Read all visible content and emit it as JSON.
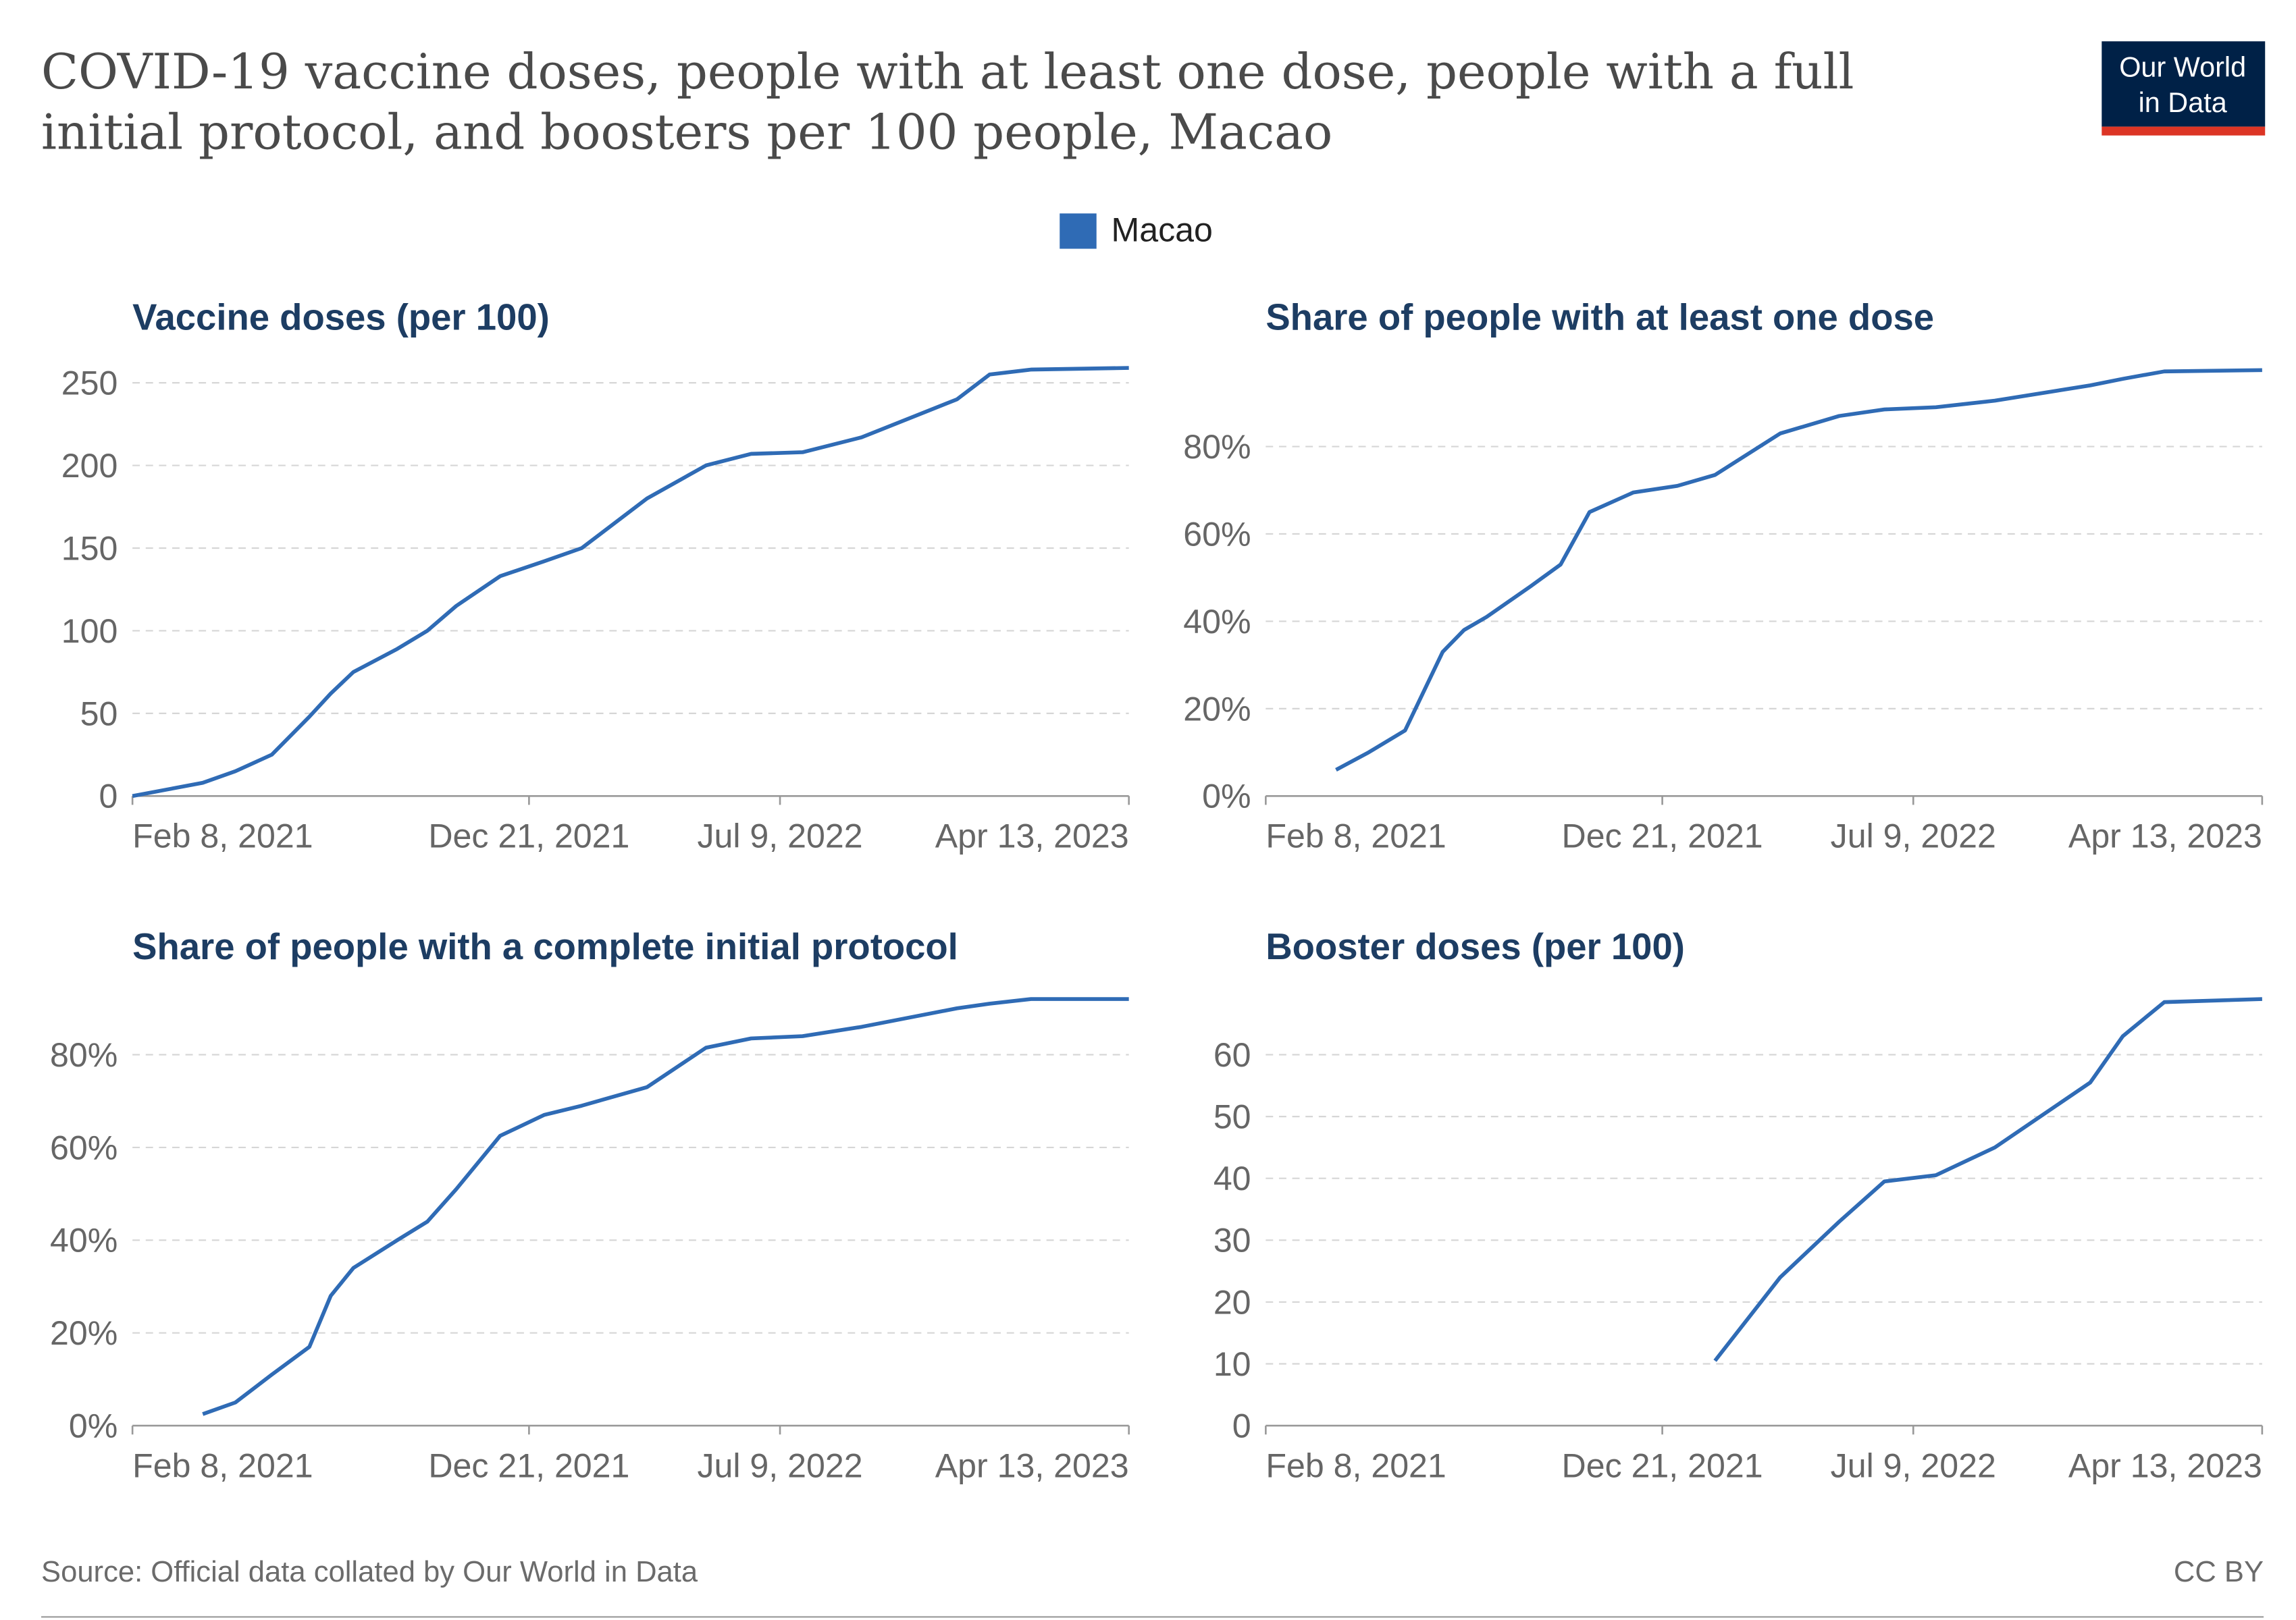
{
  "title_lines": [
    "COVID-19 vaccine doses, people with at least one dose, people with a full",
    "initial protocol, and boosters per 100 people, Macao"
  ],
  "logo": [
    "Our World",
    "in Data"
  ],
  "source": "Source: Official data collated by Our World in Data",
  "license": "CC BY",
  "chart_data": [
    {
      "type": "line",
      "title": "Vaccine doses (per 100)",
      "x": [
        "2021-02-08",
        "2021-03-08",
        "2021-04-05",
        "2021-05-01",
        "2021-05-30",
        "2021-06-29",
        "2021-07-16",
        "2021-08-03",
        "2021-09-07",
        "2021-10-01",
        "2021-10-24",
        "2021-11-28",
        "2022-01-02",
        "2022-02-01",
        "2022-03-25",
        "2022-05-11",
        "2022-06-16",
        "2022-07-27",
        "2022-09-12",
        "2022-11-27",
        "2022-12-23",
        "2023-01-25",
        "2023-04-13"
      ],
      "series": [
        {
          "name": "Macao",
          "color": "#2f6bb5",
          "values": [
            0,
            4,
            8,
            15,
            25,
            48,
            62,
            75,
            89,
            100,
            115,
            133,
            142,
            150,
            180,
            200,
            207,
            208,
            217,
            240,
            255,
            258,
            259
          ]
        }
      ],
      "xlim": [
        "2021-02-08",
        "2023-04-13"
      ],
      "xticks": [
        {
          "value": "2021-02-08",
          "label": "Feb 8, 2021"
        },
        {
          "value": "2021-12-21",
          "label": "Dec 21, 2021"
        },
        {
          "value": "2022-07-09",
          "label": "Jul 9, 2022"
        },
        {
          "value": "2023-04-13",
          "label": "Apr 13, 2023"
        }
      ],
      "ylim": [
        0,
        259
      ],
      "yticks": [
        0,
        50,
        100,
        150,
        200,
        250
      ],
      "grid": true
    },
    {
      "type": "line",
      "title": "Share of people with at least one dose",
      "x": [
        "2021-02-08",
        "2021-03-08",
        "2021-04-05",
        "2021-05-01",
        "2021-05-30",
        "2021-06-29",
        "2021-07-16",
        "2021-08-03",
        "2021-09-07",
        "2021-10-01",
        "2021-10-24",
        "2021-11-28",
        "2022-01-02",
        "2022-02-01",
        "2022-03-25",
        "2022-05-11",
        "2022-06-16",
        "2022-07-27",
        "2022-09-12",
        "2022-11-27",
        "2022-12-23",
        "2023-01-25",
        "2023-04-13"
      ],
      "series": [
        {
          "name": "Macao",
          "color": "#2f6bb5",
          "values": [
            null,
            null,
            6,
            10,
            15,
            33,
            38,
            41,
            48,
            53,
            65,
            69.5,
            71,
            73.5,
            83,
            87,
            88.5,
            89,
            90.5,
            94,
            95.5,
            97.2,
            97.5
          ]
        }
      ],
      "xlim": [
        "2021-02-08",
        "2023-04-13"
      ],
      "xticks": [
        {
          "value": "2021-02-08",
          "label": "Feb 8, 2021"
        },
        {
          "value": "2021-12-21",
          "label": "Dec 21, 2021"
        },
        {
          "value": "2022-07-09",
          "label": "Jul 9, 2022"
        },
        {
          "value": "2023-04-13",
          "label": "Apr 13, 2023"
        }
      ],
      "ylim": [
        0,
        98
      ],
      "yticks": [
        {
          "value": 0,
          "label": "0%"
        },
        {
          "value": 20,
          "label": "20%"
        },
        {
          "value": 40,
          "label": "40%"
        },
        {
          "value": 60,
          "label": "60%"
        },
        {
          "value": 80,
          "label": "80%"
        }
      ],
      "grid": true
    },
    {
      "type": "line",
      "title": "Share of people with a complete initial protocol",
      "x": [
        "2021-02-08",
        "2021-03-08",
        "2021-04-05",
        "2021-05-01",
        "2021-05-30",
        "2021-06-29",
        "2021-07-16",
        "2021-08-03",
        "2021-09-07",
        "2021-10-01",
        "2021-10-24",
        "2021-11-28",
        "2022-01-02",
        "2022-02-01",
        "2022-03-25",
        "2022-05-11",
        "2022-06-16",
        "2022-07-27",
        "2022-09-12",
        "2022-11-27",
        "2022-12-23",
        "2023-01-25",
        "2023-04-13"
      ],
      "series": [
        {
          "name": "Macao",
          "color": "#2f6bb5",
          "values": [
            null,
            null,
            2.5,
            5,
            11,
            17,
            28,
            34,
            40,
            44,
            51,
            62.5,
            67,
            69,
            73,
            81.5,
            83.5,
            84,
            86,
            90,
            91,
            92,
            92
          ]
        }
      ],
      "xlim": [
        "2021-02-08",
        "2023-04-13"
      ],
      "xticks": [
        {
          "value": "2021-02-08",
          "label": "Feb 8, 2021"
        },
        {
          "value": "2021-12-21",
          "label": "Dec 21, 2021"
        },
        {
          "value": "2022-07-09",
          "label": "Jul 9, 2022"
        },
        {
          "value": "2023-04-13",
          "label": "Apr 13, 2023"
        }
      ],
      "ylim": [
        0,
        92
      ],
      "yticks": [
        {
          "value": 0,
          "label": "0%"
        },
        {
          "value": 20,
          "label": "20%"
        },
        {
          "value": 40,
          "label": "40%"
        },
        {
          "value": 60,
          "label": "60%"
        },
        {
          "value": 80,
          "label": "80%"
        }
      ],
      "grid": true
    },
    {
      "type": "line",
      "title": "Booster doses (per 100)",
      "x": [
        "2021-02-08",
        "2021-03-08",
        "2021-04-05",
        "2021-05-01",
        "2021-05-30",
        "2021-06-29",
        "2021-07-16",
        "2021-08-03",
        "2021-09-07",
        "2021-10-01",
        "2021-10-24",
        "2021-11-28",
        "2022-01-02",
        "2022-02-01",
        "2022-03-25",
        "2022-05-11",
        "2022-06-16",
        "2022-07-27",
        "2022-09-12",
        "2022-11-27",
        "2022-12-23",
        "2023-01-25",
        "2023-04-13"
      ],
      "series": [
        {
          "name": "Macao",
          "color": "#2f6bb5",
          "values": [
            null,
            null,
            null,
            null,
            null,
            null,
            null,
            null,
            null,
            null,
            null,
            null,
            null,
            10.5,
            24,
            33,
            39.5,
            40.5,
            45,
            55.5,
            63,
            68.5,
            69
          ]
        }
      ],
      "xlim": [
        "2021-02-08",
        "2023-04-13"
      ],
      "xticks": [
        {
          "value": "2021-02-08",
          "label": "Feb 8, 2021"
        },
        {
          "value": "2021-12-21",
          "label": "Dec 21, 2021"
        },
        {
          "value": "2022-07-09",
          "label": "Jul 9, 2022"
        },
        {
          "value": "2023-04-13",
          "label": "Apr 13, 2023"
        }
      ],
      "ylim": [
        0,
        69
      ],
      "yticks": [
        0,
        10,
        20,
        30,
        40,
        50,
        60
      ],
      "grid": true
    }
  ]
}
